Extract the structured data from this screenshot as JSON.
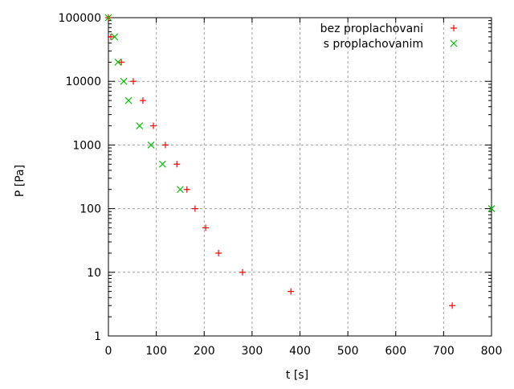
{
  "chart_data": {
    "type": "scatter",
    "title": "",
    "xlabel": "t [s]",
    "ylabel": "P [Pa]",
    "xlim": [
      0,
      800
    ],
    "ylim": [
      1,
      100000
    ],
    "yscale": "log",
    "grid": true,
    "legend_position": "top-right",
    "xticks": [
      "0",
      "100",
      "200",
      "300",
      "400",
      "500",
      "600",
      "700",
      "800"
    ],
    "yticks": [
      "1",
      "10",
      "100",
      "1000",
      "10000",
      "100000"
    ],
    "series": [
      {
        "name": "bez proplachovani",
        "marker": "plus",
        "color": "#ff0000",
        "x": [
          0,
          5,
          27,
          52,
          72,
          94,
          119,
          143,
          164,
          181,
          203,
          230,
          280,
          381,
          718
        ],
        "y": [
          100000,
          50000,
          20000,
          10000,
          5000,
          2000,
          1000,
          500,
          200,
          100,
          50,
          20,
          10,
          5,
          3
        ]
      },
      {
        "name": "s proplachovanim",
        "marker": "cross",
        "color": "#00c000",
        "x": [
          0,
          13,
          20,
          32,
          42,
          65,
          89,
          113,
          150,
          800
        ],
        "y": [
          100000,
          50000,
          20000,
          10000,
          5000,
          2000,
          1000,
          500,
          200,
          100
        ]
      }
    ]
  }
}
